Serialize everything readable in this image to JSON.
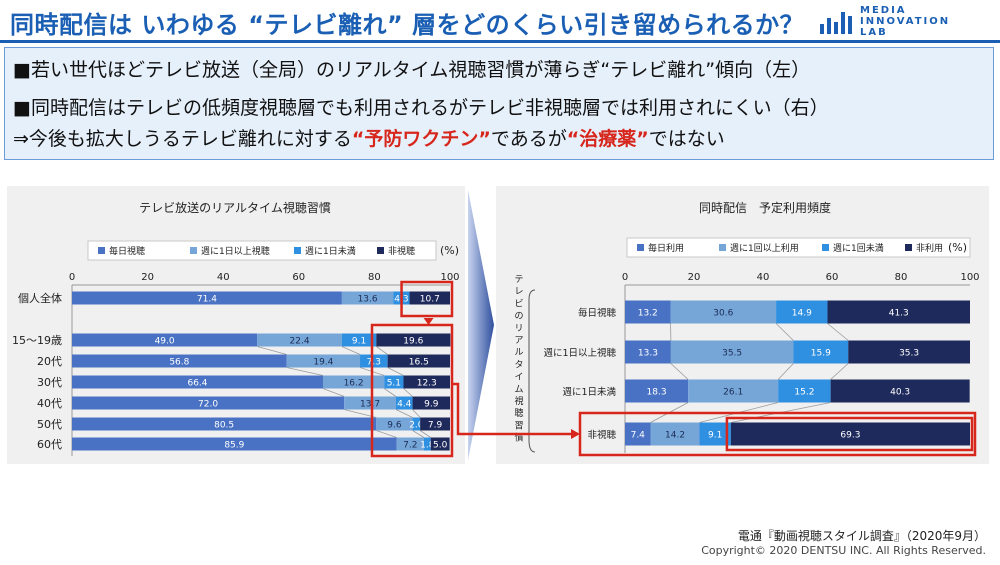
{
  "header": {
    "title": "同時配信は いわゆる “テレビ離れ” 層をどのくらい引き留められるか？",
    "logo_text": [
      "MEDIA",
      "INNOVATION",
      "LAB"
    ]
  },
  "summary": {
    "line1": "■若い世代ほどテレビ放送（全局）のリアルタイム視聴習慣が薄らぎ“テレビ離れ”傾向（左）",
    "line2": "■同時配信はテレビの低頻度視聴層でも利用されるがテレビ非視聴層では利用されにくい（右）",
    "line3_a": "⇒今後も拡大しうるテレビ離れに対する",
    "line3_b": "“予防ワクチン”",
    "line3_c": "であるが",
    "line3_d": "“治療薬”",
    "line3_e": "ではない"
  },
  "colors": {
    "brand": "#1a5fb4",
    "series": [
      "#4a72c4",
      "#76a5d8",
      "#2f8fe0",
      "#1f2a5c"
    ],
    "highlight": "#d7261b"
  },
  "chart_data": [
    {
      "type": "bar",
      "orientation": "horizontal",
      "stacked": true,
      "title": "テレビ放送のリアルタイム視聴習慣",
      "unit": "(%)",
      "xlim": [
        0,
        100
      ],
      "xticks": [
        0,
        20,
        40,
        60,
        80,
        100
      ],
      "categories": [
        "個人全体",
        "15～19歳",
        "20代",
        "30代",
        "40代",
        "50代",
        "60代"
      ],
      "series": [
        {
          "name": "毎日視聴",
          "values": [
            71.4,
            49.0,
            56.8,
            66.4,
            72.0,
            80.5,
            85.9
          ]
        },
        {
          "name": "週に1日以上視聴",
          "values": [
            13.6,
            22.4,
            19.4,
            16.2,
            13.7,
            9.6,
            7.2
          ]
        },
        {
          "name": "週に1日未満",
          "values": [
            4.3,
            9.1,
            7.3,
            5.1,
            4.4,
            2.0,
            1.8
          ]
        },
        {
          "name": "非視聴",
          "values": [
            10.7,
            19.6,
            16.5,
            12.3,
            9.9,
            7.9,
            5.0
          ]
        }
      ],
      "labels": [
        [
          "71.4",
          "13.6",
          "4.3",
          "10.7"
        ],
        [
          "49.0",
          "22.4",
          "9.1",
          "19.6"
        ],
        [
          "56.8",
          "19.4",
          "7.3",
          "16.5"
        ],
        [
          "66.4",
          "16.2",
          "5.1",
          "12.3"
        ],
        [
          "72.0",
          "13.7",
          "4.4",
          "9.9"
        ],
        [
          "80.5",
          "9.6",
          "2.0",
          "7.9"
        ],
        [
          "85.9",
          "7.2",
          "1.8",
          "5.0"
        ]
      ],
      "legend": "top"
    },
    {
      "type": "bar",
      "orientation": "horizontal",
      "stacked": true,
      "title": "同時配信　予定利用頻度",
      "unit": "(%)",
      "xlim": [
        0,
        100
      ],
      "xticks": [
        0,
        20,
        40,
        60,
        80,
        100
      ],
      "ylabel": "テレビのリアルタイム視聴習慣",
      "categories": [
        "毎日視聴",
        "週に1日以上視聴",
        "週に1日未満",
        "非視聴"
      ],
      "series": [
        {
          "name": "毎日利用",
          "values": [
            13.2,
            13.3,
            18.3,
            7.4
          ]
        },
        {
          "name": "週に1回以上利用",
          "values": [
            30.6,
            35.5,
            26.1,
            14.2
          ]
        },
        {
          "name": "週に1回未満",
          "values": [
            14.9,
            15.9,
            15.2,
            9.1
          ]
        },
        {
          "name": "非利用",
          "values": [
            41.3,
            35.3,
            40.3,
            69.3
          ]
        }
      ],
      "labels": [
        [
          "13.2",
          "30.6",
          "14.9",
          "41.3"
        ],
        [
          "13.3",
          "35.5",
          "15.9",
          "35.3"
        ],
        [
          "18.3",
          "26.1",
          "15.2",
          "40.3"
        ],
        [
          "7.4",
          "14.2",
          "9.1",
          "69.3"
        ]
      ],
      "legend": "top"
    }
  ],
  "footer": {
    "source": "電通『動画視聴スタイル調査』（2020年9月）",
    "copyright": "Copyright© 2020 DENTSU INC. All Rights Reserved."
  }
}
